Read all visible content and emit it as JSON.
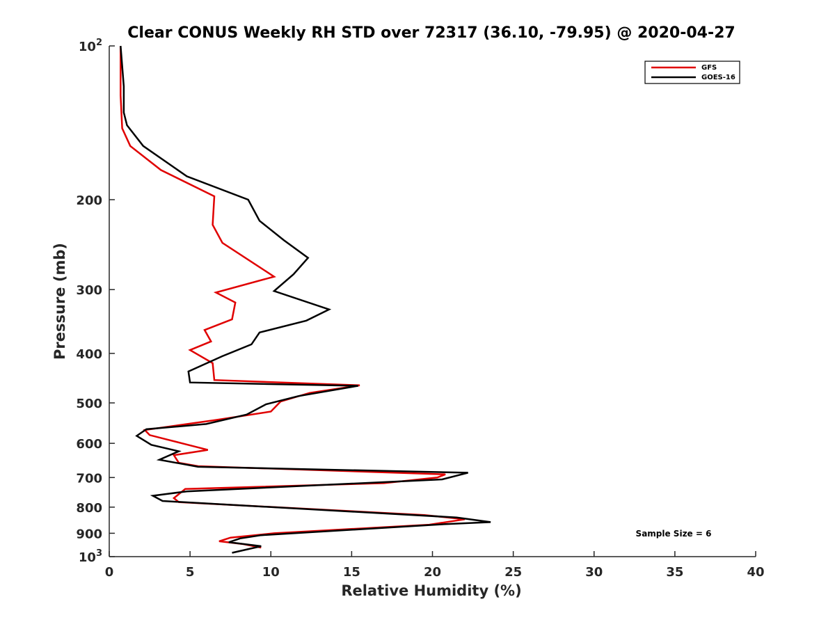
{
  "chart_data": {
    "type": "line",
    "title": "Clear CONUS Weekly RH STD over 72317 (36.10, -79.95) @ 2020-04-27",
    "xlabel": "Relative Humidity (%)",
    "ylabel": "Pressure (mb)",
    "xlim": [
      0,
      40
    ],
    "ylim": [
      100,
      1000
    ],
    "y_scale": "log",
    "y_reversed": true,
    "grid": false,
    "legend_position": "top-right",
    "x_ticks": [
      {
        "value": 0,
        "label": "0"
      },
      {
        "value": 5,
        "label": "5"
      },
      {
        "value": 10,
        "label": "10"
      },
      {
        "value": 15,
        "label": "15"
      },
      {
        "value": 20,
        "label": "20"
      },
      {
        "value": 25,
        "label": "25"
      },
      {
        "value": 30,
        "label": "30"
      },
      {
        "value": 35,
        "label": "35"
      },
      {
        "value": 40,
        "label": "40"
      }
    ],
    "y_ticks": [
      {
        "value": 100,
        "base": "10",
        "exp": "2"
      },
      {
        "value": 200,
        "base": "200",
        "exp": ""
      },
      {
        "value": 300,
        "base": "300",
        "exp": ""
      },
      {
        "value": 400,
        "base": "400",
        "exp": ""
      },
      {
        "value": 500,
        "base": "500",
        "exp": ""
      },
      {
        "value": 600,
        "base": "600",
        "exp": ""
      },
      {
        "value": 700,
        "base": "700",
        "exp": ""
      },
      {
        "value": 800,
        "base": "800",
        "exp": ""
      },
      {
        "value": 900,
        "base": "900",
        "exp": ""
      },
      {
        "value": 1000,
        "base": "10",
        "exp": "3"
      }
    ],
    "annotation": "Sample Size = 6",
    "series": [
      {
        "name": "GFS",
        "color": "#e00000",
        "points": [
          [
            0.7,
            100
          ],
          [
            0.7,
            110
          ],
          [
            0.7,
            125
          ],
          [
            0.8,
            145
          ],
          [
            1.3,
            157
          ],
          [
            3.2,
            175
          ],
          [
            6.5,
            197
          ],
          [
            6.4,
            224
          ],
          [
            7.0,
            243
          ],
          [
            10.2,
            283
          ],
          [
            6.6,
            304
          ],
          [
            7.8,
            318
          ],
          [
            7.6,
            343
          ],
          [
            5.9,
            360
          ],
          [
            6.3,
            379
          ],
          [
            5.0,
            394
          ],
          [
            6.4,
            418
          ],
          [
            6.5,
            451
          ],
          [
            15.5,
            462
          ],
          [
            12.4,
            478
          ],
          [
            10.6,
            497
          ],
          [
            10.0,
            520
          ],
          [
            6.6,
            540
          ],
          [
            2.2,
            565
          ],
          [
            2.5,
            578
          ],
          [
            3.6,
            590
          ],
          [
            6.1,
            618
          ],
          [
            4.0,
            633
          ],
          [
            4.3,
            655
          ],
          [
            5.5,
            665
          ],
          [
            20.8,
            690
          ],
          [
            20.3,
            700
          ],
          [
            17.0,
            718
          ],
          [
            4.7,
            737
          ],
          [
            4.0,
            768
          ],
          [
            4.3,
            782
          ],
          [
            19.5,
            829
          ],
          [
            22.0,
            845
          ],
          [
            19.8,
            866
          ],
          [
            10.2,
            900
          ],
          [
            7.5,
            918
          ],
          [
            6.8,
            933
          ],
          [
            8.3,
            945
          ],
          [
            9.4,
            960
          ]
        ]
      },
      {
        "name": "GOES-16",
        "color": "#000000",
        "points": [
          [
            0.7,
            100
          ],
          [
            0.9,
            120
          ],
          [
            0.9,
            135
          ],
          [
            1.1,
            143
          ],
          [
            2.1,
            157
          ],
          [
            4.8,
            180
          ],
          [
            8.6,
            200
          ],
          [
            9.3,
            220
          ],
          [
            10.8,
            240
          ],
          [
            12.3,
            260
          ],
          [
            11.4,
            280
          ],
          [
            10.2,
            302
          ],
          [
            13.6,
            328
          ],
          [
            12.2,
            345
          ],
          [
            9.3,
            364
          ],
          [
            8.8,
            384
          ],
          [
            7.0,
            405
          ],
          [
            4.9,
            434
          ],
          [
            5.0,
            456
          ],
          [
            15.4,
            463
          ],
          [
            11.7,
            485
          ],
          [
            9.7,
            503
          ],
          [
            8.5,
            527
          ],
          [
            6.0,
            550
          ],
          [
            2.3,
            563
          ],
          [
            1.7,
            580
          ],
          [
            2.6,
            604
          ],
          [
            4.3,
            622
          ],
          [
            3.1,
            646
          ],
          [
            5.5,
            667
          ],
          [
            22.2,
            685
          ],
          [
            20.6,
            706
          ],
          [
            4.8,
            745
          ],
          [
            2.7,
            760
          ],
          [
            3.3,
            778
          ],
          [
            21.5,
            838
          ],
          [
            23.6,
            856
          ],
          [
            20.7,
            864
          ],
          [
            9.4,
            908
          ],
          [
            8.1,
            921
          ],
          [
            7.4,
            937
          ],
          [
            9.4,
            954
          ],
          [
            7.6,
            983
          ]
        ]
      }
    ]
  }
}
